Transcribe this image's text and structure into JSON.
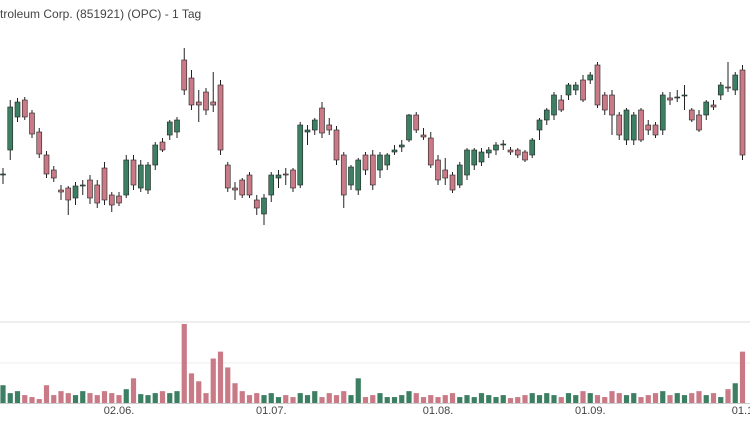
{
  "chart_data": {
    "type": "candlestick",
    "title": "troleum Corp. (851921) (OPC) - 1 Tag",
    "up_color": "#3d7f63",
    "down_color": "#c97a86",
    "ylim": [
      0,
      250
    ],
    "volume_ylim": [
      0,
      82
    ],
    "categories": [
      null,
      null,
      null,
      null,
      null,
      null,
      null,
      null,
      null,
      null,
      null,
      null,
      null,
      null,
      null,
      null,
      "02.06.",
      null,
      null,
      null,
      null,
      null,
      null,
      null,
      null,
      null,
      null,
      null,
      null,
      null,
      null,
      null,
      null,
      null,
      null,
      null,
      null,
      "01.07.",
      null,
      null,
      null,
      null,
      null,
      null,
      null,
      null,
      null,
      null,
      null,
      null,
      null,
      null,
      null,
      null,
      null,
      null,
      null,
      null,
      null,
      null,
      "01.08.",
      null,
      null,
      null,
      null,
      null,
      null,
      null,
      null,
      null,
      null,
      null,
      null,
      null,
      null,
      null,
      null,
      null,
      null,
      null,
      null,
      "01.09.",
      null,
      null,
      null,
      null,
      null,
      null,
      null,
      null,
      null,
      null,
      null,
      null,
      null,
      null,
      null,
      null,
      null,
      null,
      null,
      null,
      "01.1"
    ],
    "ohlc": [
      [
        75,
        82,
        66,
        76
      ],
      [
        100,
        150,
        90,
        143
      ],
      [
        133,
        152,
        128,
        148
      ],
      [
        150,
        153,
        130,
        133
      ],
      [
        137,
        140,
        112,
        116
      ],
      [
        118,
        122,
        92,
        96
      ],
      [
        95,
        99,
        72,
        76
      ],
      [
        80,
        84,
        68,
        72
      ],
      [
        60,
        65,
        50,
        58
      ],
      [
        62,
        64,
        35,
        50
      ],
      [
        52,
        68,
        45,
        64
      ],
      [
        64,
        70,
        55,
        65
      ],
      [
        70,
        75,
        46,
        52
      ],
      [
        65,
        70,
        42,
        47
      ],
      [
        82,
        88,
        45,
        50
      ],
      [
        55,
        58,
        38,
        45
      ],
      [
        54,
        58,
        44,
        47
      ],
      [
        55,
        95,
        52,
        90
      ],
      [
        90,
        95,
        60,
        65
      ],
      [
        62,
        90,
        58,
        85
      ],
      [
        60,
        88,
        56,
        85
      ],
      [
        85,
        108,
        80,
        105
      ],
      [
        108,
        112,
        98,
        100
      ],
      [
        115,
        130,
        110,
        128
      ],
      [
        118,
        133,
        112,
        130
      ],
      [
        190,
        202,
        155,
        160
      ],
      [
        172,
        180,
        140,
        145
      ],
      [
        148,
        160,
        128,
        145
      ],
      [
        158,
        162,
        135,
        140
      ],
      [
        148,
        178,
        138,
        145
      ],
      [
        165,
        170,
        95,
        100
      ],
      [
        85,
        88,
        58,
        62
      ],
      [
        62,
        68,
        50,
        60
      ],
      [
        70,
        72,
        52,
        55
      ],
      [
        75,
        78,
        52,
        55
      ],
      [
        50,
        55,
        35,
        42
      ],
      [
        36,
        56,
        25,
        52
      ],
      [
        55,
        78,
        48,
        75
      ],
      [
        72,
        80,
        62,
        75
      ],
      [
        76,
        82,
        65,
        75
      ],
      [
        80,
        82,
        58,
        62
      ],
      [
        65,
        128,
        62,
        125
      ],
      [
        118,
        125,
        105,
        120
      ],
      [
        120,
        132,
        115,
        130
      ],
      [
        142,
        148,
        112,
        117
      ],
      [
        125,
        132,
        115,
        120
      ],
      [
        120,
        124,
        85,
        90
      ],
      [
        95,
        98,
        42,
        55
      ],
      [
        65,
        85,
        60,
        83
      ],
      [
        60,
        92,
        55,
        90
      ],
      [
        95,
        98,
        75,
        80
      ],
      [
        95,
        100,
        60,
        65
      ],
      [
        80,
        98,
        72,
        95
      ],
      [
        85,
        97,
        80,
        95
      ],
      [
        98,
        105,
        95,
        100
      ],
      [
        103,
        110,
        98,
        105
      ],
      [
        110,
        136,
        108,
        135
      ],
      [
        135,
        138,
        117,
        120
      ],
      [
        115,
        122,
        110,
        113
      ],
      [
        112,
        118,
        82,
        85
      ],
      [
        90,
        95,
        65,
        70
      ],
      [
        80,
        92,
        65,
        72
      ],
      [
        75,
        78,
        57,
        60
      ],
      [
        65,
        88,
        62,
        85
      ],
      [
        75,
        102,
        70,
        100
      ],
      [
        85,
        102,
        80,
        100
      ],
      [
        88,
        102,
        84,
        98
      ],
      [
        97,
        103,
        92,
        100
      ],
      [
        100,
        108,
        95,
        105
      ],
      [
        105,
        110,
        100,
        106
      ],
      [
        100,
        103,
        95,
        98
      ],
      [
        100,
        102,
        92,
        95
      ],
      [
        98,
        100,
        88,
        90
      ],
      [
        95,
        112,
        92,
        110
      ],
      [
        120,
        132,
        110,
        130
      ],
      [
        130,
        142,
        125,
        140
      ],
      [
        135,
        158,
        130,
        155
      ],
      [
        150,
        155,
        138,
        140
      ],
      [
        155,
        167,
        150,
        165
      ],
      [
        160,
        168,
        155,
        165
      ],
      [
        170,
        175,
        148,
        150
      ],
      [
        170,
        178,
        166,
        175
      ],
      [
        185,
        188,
        142,
        145
      ],
      [
        155,
        158,
        135,
        140
      ],
      [
        155,
        160,
        115,
        135
      ],
      [
        135,
        138,
        110,
        115
      ],
      [
        110,
        142,
        105,
        140
      ],
      [
        110,
        138,
        105,
        135
      ],
      [
        140,
        142,
        108,
        110
      ],
      [
        125,
        130,
        115,
        120
      ],
      [
        125,
        128,
        112,
        115
      ],
      [
        120,
        158,
        115,
        155
      ],
      [
        152,
        158,
        145,
        150
      ],
      [
        152,
        160,
        148,
        153
      ],
      [
        155,
        165,
        140,
        155
      ],
      [
        140,
        142,
        128,
        130
      ],
      [
        135,
        140,
        118,
        120
      ],
      [
        135,
        150,
        130,
        148
      ],
      [
        145,
        150,
        140,
        143
      ],
      [
        155,
        168,
        150,
        165
      ],
      [
        163,
        188,
        158,
        162
      ],
      [
        160,
        178,
        155,
        175
      ],
      [
        180,
        185,
        90,
        95
      ]
    ],
    "volume": [
      18,
      10,
      12,
      8,
      6,
      4,
      18,
      8,
      12,
      10,
      8,
      12,
      10,
      8,
      12,
      10,
      8,
      14,
      25,
      9,
      8,
      10,
      12,
      10,
      12,
      80,
      30,
      22,
      10,
      45,
      52,
      36,
      20,
      12,
      8,
      10,
      8,
      10,
      6,
      8,
      6,
      10,
      8,
      12,
      6,
      10,
      8,
      12,
      8,
      25,
      6,
      8,
      10,
      6,
      6,
      8,
      12,
      10,
      6,
      8,
      6,
      8,
      10,
      6,
      8,
      6,
      10,
      8,
      6,
      8,
      5,
      6,
      8,
      10,
      8,
      10,
      8,
      6,
      10,
      8,
      12,
      10,
      8,
      6,
      12,
      10,
      8,
      10,
      6,
      8,
      10,
      12,
      8,
      10,
      8,
      10,
      12,
      8,
      10,
      6,
      14,
      20,
      52
    ]
  }
}
